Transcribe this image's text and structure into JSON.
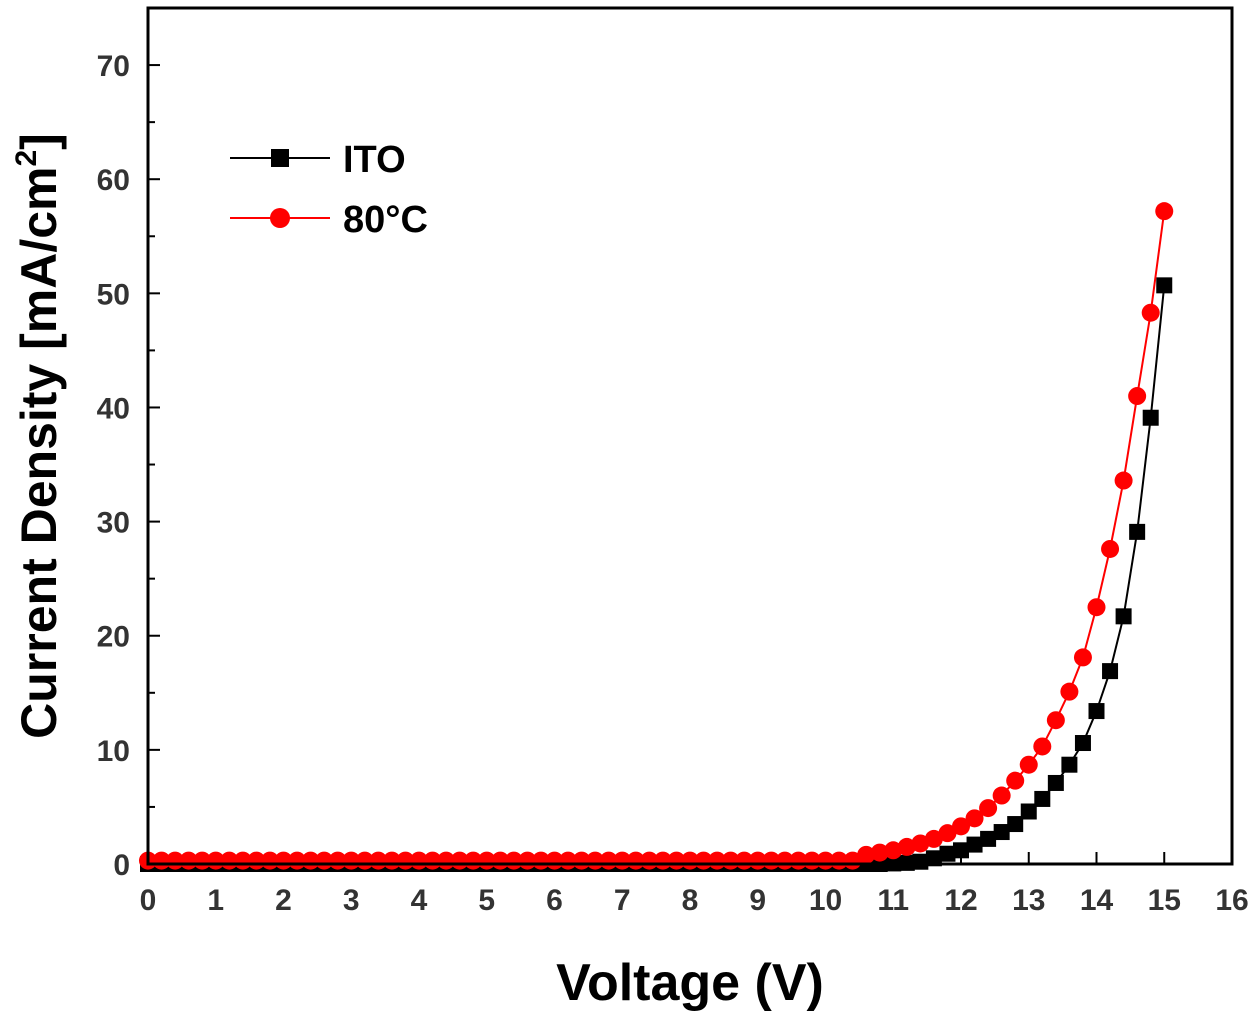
{
  "chart_data": {
    "type": "line",
    "title": "",
    "xlabel": "Voltage (V)",
    "ylabel": "Current Density [mA/cm",
    "ylabel_sup": "2",
    "ylabel_close": "]",
    "xlim": [
      0,
      16
    ],
    "ylim": [
      0,
      75
    ],
    "xticks": [
      0,
      1,
      2,
      3,
      4,
      5,
      6,
      7,
      8,
      9,
      10,
      11,
      12,
      13,
      14,
      15,
      16
    ],
    "yticks": [
      0,
      10,
      20,
      30,
      40,
      50,
      60,
      70
    ],
    "grid": false,
    "legend_position": "top-left",
    "x": [
      0,
      0.2,
      0.4,
      0.6,
      0.8,
      1,
      1.2,
      1.4,
      1.6,
      1.8,
      2,
      2.2,
      2.4,
      2.6,
      2.8,
      3,
      3.2,
      3.4,
      3.6,
      3.8,
      4,
      4.2,
      4.4,
      4.6,
      4.8,
      5,
      5.2,
      5.4,
      5.6,
      5.8,
      6,
      6.2,
      6.4,
      6.6,
      6.8,
      7,
      7.2,
      7.4,
      7.6,
      7.8,
      8,
      8.2,
      8.4,
      8.6,
      8.8,
      9,
      9.2,
      9.4,
      9.6,
      9.8,
      10,
      10.2,
      10.4,
      10.6,
      10.8,
      11,
      11.2,
      11.4,
      11.6,
      11.8,
      12,
      12.2,
      12.4,
      12.6,
      12.8,
      13,
      13.2,
      13.4,
      13.6,
      13.8,
      14,
      14.2,
      14.4,
      14.6,
      14.8,
      15
    ],
    "series": [
      {
        "name": "ITO",
        "color": "#000000",
        "marker": "square",
        "values": [
          0,
          0,
          0,
          0,
          0,
          0,
          0,
          0,
          0,
          0,
          0,
          0,
          0,
          0,
          0,
          0,
          0,
          0,
          0,
          0,
          0,
          0,
          0,
          0,
          0,
          0,
          0,
          0,
          0,
          0,
          0,
          0,
          0,
          0,
          0,
          0,
          0,
          0,
          0,
          0,
          0,
          0,
          0,
          0,
          0,
          0,
          0,
          0,
          0,
          0,
          0,
          0,
          0,
          0,
          0,
          0.05,
          0.1,
          0.2,
          0.5,
          0.9,
          1.2,
          1.7,
          2.2,
          2.8,
          3.5,
          4.6,
          5.7,
          7.1,
          8.7,
          10.6,
          13.4,
          16.9,
          21.7,
          29.1,
          39.1,
          50.7
        ]
      },
      {
        "name": "80°C",
        "color": "#ff0000",
        "marker": "circle",
        "values": [
          0.3,
          0.3,
          0.3,
          0.3,
          0.3,
          0.3,
          0.3,
          0.3,
          0.3,
          0.3,
          0.3,
          0.3,
          0.3,
          0.3,
          0.3,
          0.3,
          0.3,
          0.3,
          0.3,
          0.3,
          0.3,
          0.3,
          0.3,
          0.3,
          0.3,
          0.3,
          0.3,
          0.3,
          0.3,
          0.3,
          0.3,
          0.3,
          0.3,
          0.3,
          0.3,
          0.3,
          0.3,
          0.3,
          0.3,
          0.3,
          0.3,
          0.3,
          0.3,
          0.3,
          0.3,
          0.3,
          0.3,
          0.3,
          0.3,
          0.3,
          0.3,
          0.3,
          0.3,
          0.8,
          1.0,
          1.2,
          1.5,
          1.8,
          2.2,
          2.7,
          3.3,
          4.0,
          4.9,
          6.0,
          7.3,
          8.7,
          10.3,
          12.6,
          15.1,
          18.1,
          22.5,
          27.6,
          33.6,
          41.0,
          48.3,
          57.2
        ]
      }
    ]
  }
}
